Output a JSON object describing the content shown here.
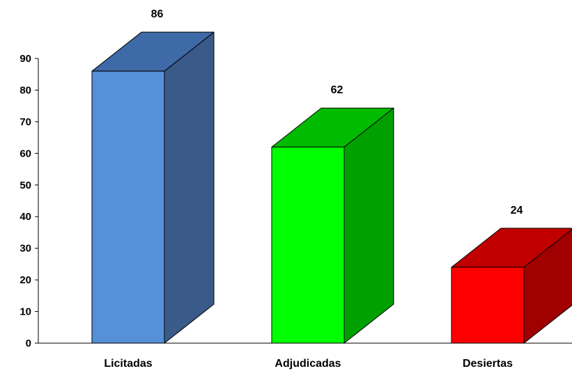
{
  "chart_data": {
    "type": "bar",
    "title": "",
    "xlabel": "",
    "ylabel": "",
    "categories": [
      "Licitadas",
      "Adjudicadas",
      "Desiertas"
    ],
    "values": [
      86,
      62,
      24
    ],
    "data_labels": [
      "86",
      "62",
      "24"
    ],
    "ylim": [
      0,
      90
    ],
    "yticks": [
      "0",
      "10",
      "20",
      "30",
      "40",
      "50",
      "60",
      "70",
      "80",
      "90"
    ],
    "grid": false,
    "legend": "none",
    "style": "3d-box",
    "colors": [
      {
        "front": "#5590D8",
        "top": "#3F6AA8",
        "side": "#3A5A8A"
      },
      {
        "front": "#00FF00",
        "top": "#00BB00",
        "side": "#00A000"
      },
      {
        "front": "#FF0000",
        "top": "#C00000",
        "side": "#A00000"
      }
    ]
  }
}
